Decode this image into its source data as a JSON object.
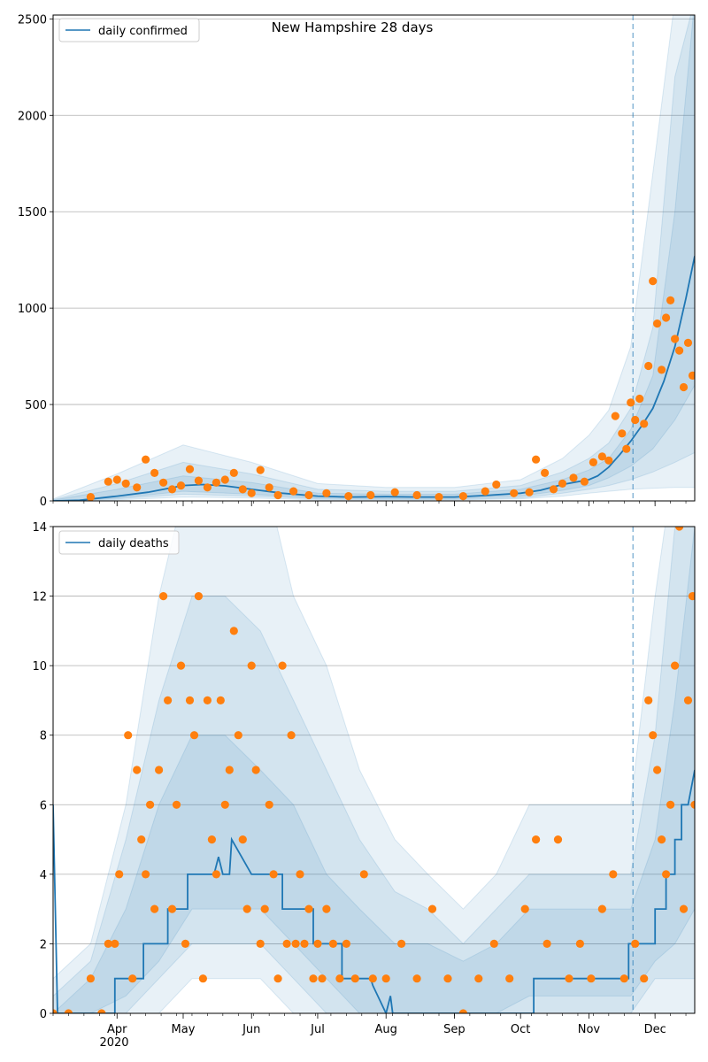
{
  "chart_data": [
    {
      "type": "line",
      "title": "New Hampshire 28 days",
      "legend": [
        "daily confirmed"
      ],
      "legend_position": "top-left",
      "grid": "horizontal",
      "ylim": [
        0,
        2520
      ],
      "yticks": [
        0,
        500,
        1000,
        1500,
        2000,
        2500
      ],
      "xlim": [
        "2020-03-03",
        "2020-12-19"
      ],
      "forecast_start": "2020-11-21",
      "line_color": "#1f77b4",
      "point_color": "#ff7f0e",
      "band_color": "#1f77b4",
      "series": [
        {
          "name": "daily confirmed",
          "kind": "line",
          "x": [
            "2020-03-03",
            "2020-03-15",
            "2020-04-01",
            "2020-04-15",
            "2020-05-01",
            "2020-05-10",
            "2020-05-20",
            "2020-06-01",
            "2020-06-15",
            "2020-07-01",
            "2020-07-15",
            "2020-08-01",
            "2020-08-15",
            "2020-09-01",
            "2020-09-15",
            "2020-10-01",
            "2020-10-10",
            "2020-10-20",
            "2020-11-01",
            "2020-11-05",
            "2020-11-10",
            "2020-11-15",
            "2020-11-20",
            "2020-11-25",
            "2020-11-30",
            "2020-12-05",
            "2020-12-10",
            "2020-12-15",
            "2020-12-19"
          ],
          "y": [
            0,
            3,
            25,
            45,
            80,
            85,
            78,
            60,
            40,
            25,
            20,
            22,
            20,
            20,
            28,
            40,
            55,
            85,
            110,
            130,
            175,
            240,
            310,
            390,
            480,
            620,
            800,
            1050,
            1270
          ]
        },
        {
          "name": "observed",
          "kind": "scatter",
          "x": [
            "2020-03-20",
            "2020-03-28",
            "2020-04-01",
            "2020-04-05",
            "2020-04-10",
            "2020-04-14",
            "2020-04-18",
            "2020-04-22",
            "2020-04-26",
            "2020-04-30",
            "2020-05-04",
            "2020-05-08",
            "2020-05-12",
            "2020-05-16",
            "2020-05-20",
            "2020-05-24",
            "2020-05-28",
            "2020-06-01",
            "2020-06-05",
            "2020-06-09",
            "2020-06-13",
            "2020-06-20",
            "2020-06-27",
            "2020-07-05",
            "2020-07-15",
            "2020-07-25",
            "2020-08-05",
            "2020-08-15",
            "2020-08-25",
            "2020-09-05",
            "2020-09-15",
            "2020-09-20",
            "2020-09-28",
            "2020-10-05",
            "2020-10-08",
            "2020-10-12",
            "2020-10-16",
            "2020-10-20",
            "2020-10-25",
            "2020-10-30",
            "2020-11-03",
            "2020-11-07",
            "2020-11-10",
            "2020-11-13",
            "2020-11-16",
            "2020-11-18",
            "2020-11-20",
            "2020-11-22",
            "2020-11-24",
            "2020-11-26",
            "2020-11-28",
            "2020-11-30",
            "2020-12-02",
            "2020-12-04",
            "2020-12-06",
            "2020-12-08",
            "2020-12-10",
            "2020-12-12",
            "2020-12-14",
            "2020-12-16",
            "2020-12-18"
          ],
          "y": [
            20,
            100,
            110,
            90,
            70,
            215,
            145,
            95,
            60,
            80,
            165,
            105,
            70,
            95,
            110,
            145,
            60,
            40,
            160,
            70,
            30,
            50,
            30,
            40,
            25,
            30,
            45,
            30,
            20,
            25,
            50,
            85,
            40,
            45,
            215,
            145,
            60,
            90,
            120,
            100,
            200,
            230,
            210,
            440,
            350,
            270,
            510,
            420,
            530,
            400,
            700,
            1140,
            920,
            680,
            950,
            1040,
            840,
            780,
            590,
            820,
            650
          ]
        }
      ],
      "band": {
        "x": [
          "2020-03-03",
          "2020-04-01",
          "2020-05-01",
          "2020-06-01",
          "2020-07-01",
          "2020-08-01",
          "2020-09-01",
          "2020-10-01",
          "2020-10-20",
          "2020-11-01",
          "2020-11-10",
          "2020-11-20",
          "2020-11-30",
          "2020-12-10",
          "2020-12-19"
        ],
        "bands": [
          {
            "lo": [
              0,
              5,
              20,
              15,
              5,
              5,
              5,
              10,
              25,
              40,
              50,
              60,
              65,
              70,
              70
            ],
            "hi": [
              10,
              140,
              290,
              200,
              90,
              70,
              70,
              110,
              220,
              340,
              470,
              800,
              1700,
              2600,
              2600
            ]
          },
          {
            "lo": [
              0,
              10,
              35,
              25,
              10,
              8,
              8,
              15,
              40,
              60,
              80,
              110,
              150,
              200,
              250
            ],
            "hi": [
              6,
              90,
              200,
              140,
              60,
              50,
              50,
              80,
              150,
              220,
              300,
              480,
              900,
              2200,
              2600
            ]
          },
          {
            "lo": [
              0,
              15,
              50,
              35,
              15,
              12,
              12,
              25,
              55,
              80,
              120,
              180,
              270,
              420,
              600
            ],
            "hi": [
              4,
              60,
              130,
              95,
              40,
              35,
              35,
              60,
              110,
              160,
              220,
              370,
              650,
              1500,
              2600
            ]
          }
        ]
      }
    },
    {
      "type": "line",
      "title": "",
      "legend": [
        "daily deaths"
      ],
      "legend_position": "top-left",
      "grid": "horizontal",
      "ylim": [
        0,
        14
      ],
      "yticks": [
        0,
        2,
        4,
        6,
        8,
        10,
        12,
        14
      ],
      "xlim": [
        "2020-03-03",
        "2020-12-19"
      ],
      "forecast_start": "2020-11-21",
      "xticks": [
        "Apr",
        "May",
        "Jun",
        "Jul",
        "Aug",
        "Sep",
        "Oct",
        "Nov",
        "Dec"
      ],
      "xtick_dates": [
        "2020-04-01",
        "2020-05-01",
        "2020-06-01",
        "2020-07-01",
        "2020-08-01",
        "2020-09-01",
        "2020-10-01",
        "2020-11-01",
        "2020-12-01"
      ],
      "year_label": "2020",
      "series": [
        {
          "name": "daily deaths",
          "kind": "line",
          "x": [
            "2020-03-03",
            "2020-03-05",
            "2020-03-31",
            "2020-03-31",
            "2020-04-13",
            "2020-04-13",
            "2020-04-24",
            "2020-04-24",
            "2020-05-03",
            "2020-05-03",
            "2020-05-15",
            "2020-05-17",
            "2020-05-19",
            "2020-05-22",
            "2020-05-23",
            "2020-06-01",
            "2020-06-15",
            "2020-06-15",
            "2020-06-29",
            "2020-06-29",
            "2020-07-12",
            "2020-07-12",
            "2020-07-25",
            "2020-07-26",
            "2020-08-01",
            "2020-08-03",
            "2020-08-04",
            "2020-10-07",
            "2020-10-07",
            "2020-10-09",
            "2020-10-09",
            "2020-11-19",
            "2020-11-19",
            "2020-12-01",
            "2020-12-01",
            "2020-12-06",
            "2020-12-06",
            "2020-12-10",
            "2020-12-10",
            "2020-12-13",
            "2020-12-13",
            "2020-12-16",
            "2020-12-19"
          ],
          "y": [
            6,
            0,
            0,
            1,
            1,
            2,
            2,
            3,
            3,
            4,
            4,
            4.5,
            4,
            4,
            5,
            4,
            4,
            3,
            3,
            2,
            2,
            1,
            1,
            0.8,
            0,
            0.5,
            0,
            0,
            1,
            1,
            1,
            1,
            2,
            2,
            3,
            3,
            4,
            4,
            5,
            5,
            6,
            6,
            7
          ]
        },
        {
          "name": "observed",
          "kind": "scatter",
          "x": [
            "2020-03-03",
            "2020-03-10",
            "2020-03-20",
            "2020-03-25",
            "2020-03-28",
            "2020-03-31",
            "2020-04-02",
            "2020-04-06",
            "2020-04-08",
            "2020-04-10",
            "2020-04-12",
            "2020-04-14",
            "2020-04-16",
            "2020-04-18",
            "2020-04-20",
            "2020-04-22",
            "2020-04-24",
            "2020-04-26",
            "2020-04-28",
            "2020-04-30",
            "2020-05-02",
            "2020-05-04",
            "2020-05-06",
            "2020-05-08",
            "2020-05-10",
            "2020-05-12",
            "2020-05-14",
            "2020-05-16",
            "2020-05-18",
            "2020-05-20",
            "2020-05-22",
            "2020-05-24",
            "2020-05-26",
            "2020-05-28",
            "2020-05-30",
            "2020-06-01",
            "2020-06-03",
            "2020-06-05",
            "2020-06-07",
            "2020-06-09",
            "2020-06-11",
            "2020-06-13",
            "2020-06-15",
            "2020-06-17",
            "2020-06-19",
            "2020-06-21",
            "2020-06-23",
            "2020-06-25",
            "2020-06-27",
            "2020-06-29",
            "2020-07-01",
            "2020-07-03",
            "2020-07-05",
            "2020-07-08",
            "2020-07-11",
            "2020-07-14",
            "2020-07-18",
            "2020-07-22",
            "2020-07-26",
            "2020-08-01",
            "2020-08-08",
            "2020-08-15",
            "2020-08-22",
            "2020-08-29",
            "2020-09-05",
            "2020-09-12",
            "2020-09-19",
            "2020-09-26",
            "2020-10-03",
            "2020-10-08",
            "2020-10-13",
            "2020-10-18",
            "2020-10-23",
            "2020-10-28",
            "2020-11-02",
            "2020-11-07",
            "2020-11-12",
            "2020-11-17",
            "2020-11-22",
            "2020-11-26",
            "2020-11-28",
            "2020-11-30",
            "2020-12-02",
            "2020-12-04",
            "2020-12-06",
            "2020-12-08",
            "2020-12-10",
            "2020-12-12",
            "2020-12-14",
            "2020-12-16",
            "2020-12-18",
            "2020-12-19"
          ],
          "y": [
            0,
            0,
            1,
            0,
            2,
            2,
            4,
            8,
            1,
            7,
            5,
            4,
            6,
            3,
            7,
            12,
            9,
            3,
            6,
            10,
            2,
            9,
            8,
            12,
            1,
            9,
            5,
            4,
            9,
            6,
            7,
            11,
            8,
            5,
            3,
            10,
            7,
            2,
            3,
            6,
            4,
            1,
            10,
            2,
            8,
            2,
            4,
            2,
            3,
            1,
            2,
            1,
            3,
            2,
            1,
            2,
            1,
            4,
            1,
            1,
            2,
            1,
            3,
            1,
            0,
            1,
            2,
            1,
            3,
            5,
            2,
            5,
            1,
            2,
            1,
            3,
            4,
            1,
            2,
            1,
            9,
            8,
            7,
            5,
            4,
            6,
            10,
            14,
            3,
            9,
            12,
            6
          ]
        }
      ],
      "band": {
        "x": [
          "2020-03-03",
          "2020-03-20",
          "2020-04-05",
          "2020-04-20",
          "2020-05-05",
          "2020-05-20",
          "2020-06-05",
          "2020-06-20",
          "2020-07-05",
          "2020-07-20",
          "2020-08-05",
          "2020-08-20",
          "2020-09-05",
          "2020-09-20",
          "2020-10-05",
          "2020-10-20",
          "2020-11-05",
          "2020-11-20",
          "2020-12-01",
          "2020-12-10",
          "2020-12-19"
        ],
        "bands": [
          {
            "lo": [
              0,
              0,
              0,
              0,
              1,
              1,
              1,
              0,
              0,
              0,
              0,
              0,
              0,
              0,
              0,
              0,
              0,
              0,
              0,
              0,
              0
            ],
            "hi": [
              1,
              2,
              6,
              12,
              16,
              16,
              16,
              12,
              10,
              7,
              5,
              4,
              3,
              4,
              6,
              6,
              6,
              6,
              12,
              16,
              16
            ]
          },
          {
            "lo": [
              0,
              0,
              0,
              1,
              2,
              2,
              2,
              1,
              0,
              0,
              0,
              0,
              0,
              0,
              0,
              0,
              0,
              0,
              1,
              1,
              1
            ],
            "hi": [
              0.5,
              1.5,
              5,
              9,
              12,
              12,
              11,
              9,
              7,
              5,
              3.5,
              3,
              2,
              3,
              4,
              4,
              4,
              4,
              8,
              14,
              16
            ]
          },
          {
            "lo": [
              0,
              0,
              0.5,
              1.5,
              3,
              3,
              3,
              2,
              1,
              0,
              0,
              0,
              0,
              0,
              0.5,
              0.5,
              0.5,
              0.5,
              1.5,
              2,
              3
            ],
            "hi": [
              0,
              1,
              3,
              6,
              8,
              8,
              7,
              6,
              4,
              3,
              2,
              2,
              1.5,
              2,
              3,
              3,
              3,
              3,
              5,
              9,
              14
            ]
          }
        ]
      }
    }
  ]
}
